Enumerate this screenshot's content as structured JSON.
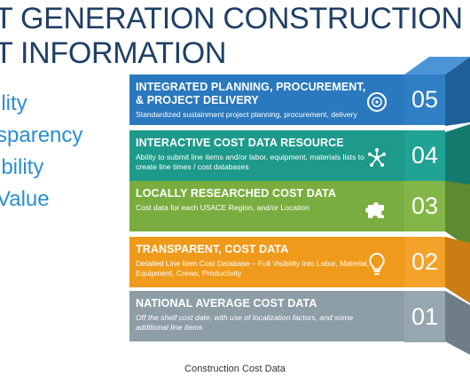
{
  "header": {
    "title_line1": "T GENERATION CONSTRUCTION",
    "title_line2": "T INFORMATION"
  },
  "bullets": [
    "ility",
    "sparency",
    "ibility",
    "Value"
  ],
  "levels": [
    {
      "number": "05",
      "title": "INTEGRATED PLANNING, PROCUREMENT, & PROJECT DELIVERY",
      "description": "Standardized sustainment project planning, procurement, delivery",
      "color": "#2a78bd",
      "side_color": "#1f5f98",
      "icon": "disc-icon"
    },
    {
      "number": "04",
      "title": "INTERACTIVE COST DATA RESOURCE",
      "description": "Ability to submit line items and/or labor, equipment, materials lists to create line times / cost databases",
      "color": "#1d9a8a",
      "side_color": "#157a6d",
      "icon": "network-icon"
    },
    {
      "number": "03",
      "title": "LOCALLY RESEARCHED COST DATA",
      "description": "Cost data for each USACE Region, and/or Location",
      "color": "#7aad3f",
      "side_color": "#5f8a30",
      "icon": "puzzle-icon"
    },
    {
      "number": "02",
      "title": "TRANSPARENT, COST DATA",
      "description": "Detailed Line Item Cost Database – Full Visibility into Labor, Material, Equipment, Crews, Productivity",
      "color": "#f09a1c",
      "side_color": "#c97d12",
      "icon": "lightbulb-icon"
    },
    {
      "number": "01",
      "title": "NATIONAL AVERAGE COST DATA",
      "description": "Off the shelf cost date, with use of localization factors, and some additional line items",
      "color": "#8e9ea6",
      "side_color": "#6f7e86",
      "icon": ""
    }
  ],
  "caption": "Construction Cost Data"
}
